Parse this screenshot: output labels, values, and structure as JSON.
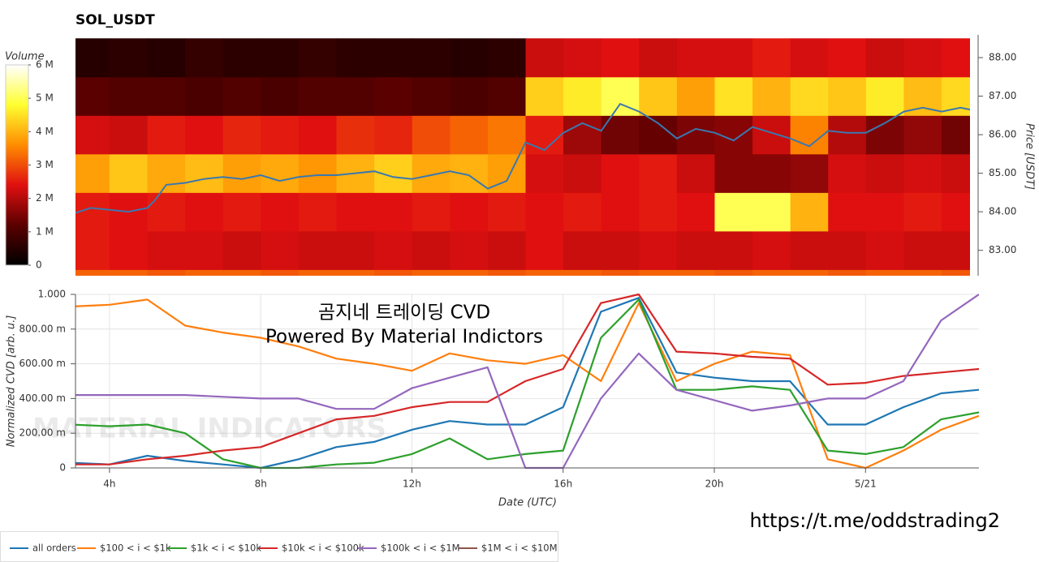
{
  "title": "SOL_USDT",
  "annotations": [
    "곰지네 트레이딩 CVD",
    "Powered By Material Indictors"
  ],
  "url": "https://t.me/oddstrading2",
  "watermark": "MATERIAL INDICATORS",
  "chart_data": [
    {
      "type": "heatmap",
      "y_label": "Price [USDT]",
      "xlim": [
        3.1,
        26.75
      ],
      "ylim": [
        82.34,
        88.59
      ],
      "yticks": [
        {
          "value": 83,
          "label": "83.00"
        },
        {
          "value": 84,
          "label": "84.00"
        },
        {
          "value": 85,
          "label": "85.00"
        },
        {
          "value": 86,
          "label": "86.00"
        },
        {
          "value": 87,
          "label": "87.00"
        },
        {
          "value": 88,
          "label": "88.00"
        }
      ],
      "xbins": [
        3,
        4,
        5,
        6,
        7,
        8,
        9,
        10,
        11,
        12,
        13,
        14,
        15,
        16,
        17,
        18,
        19,
        20,
        21,
        22,
        23,
        24,
        25,
        26,
        27
      ],
      "ybins": [
        81.5,
        82.5,
        83.5,
        84.5,
        85.5,
        86.5,
        87.5,
        88.5
      ],
      "z": [
        [
          3.2,
          3.2,
          3.1,
          3.2,
          3.2,
          3.1,
          3.2,
          3.2,
          3.1,
          3.2,
          3.2,
          3.1,
          3.2,
          3.2,
          3.1,
          3.2,
          3.2,
          3.1,
          3.2,
          3.2,
          3.1,
          3.2,
          3.2,
          3.1
        ],
        [
          2.5,
          2.4,
          2.3,
          2.3,
          2.2,
          2.3,
          2.2,
          2.2,
          2.3,
          2.2,
          2.3,
          2.2,
          2.4,
          2.2,
          2.2,
          2.3,
          2.2,
          2.2,
          2.3,
          2.2,
          2.2,
          2.3,
          2.2,
          2.2
        ],
        [
          2.5,
          2.4,
          2.5,
          2.4,
          2.5,
          2.4,
          2.5,
          2.4,
          2.4,
          2.5,
          2.4,
          2.5,
          2.4,
          2.5,
          2.4,
          2.5,
          2.4,
          5.0,
          5.0,
          4.0,
          2.4,
          2.4,
          2.5,
          2.4
        ],
        [
          3.8,
          4.2,
          3.9,
          4.1,
          3.8,
          3.9,
          3.7,
          4.0,
          4.3,
          3.9,
          4.0,
          3.8,
          2.3,
          2.2,
          2.4,
          2.5,
          2.2,
          1.6,
          1.6,
          1.7,
          2.3,
          2.2,
          2.3,
          2.2
        ],
        [
          2.3,
          2.2,
          2.5,
          2.4,
          2.6,
          2.5,
          2.4,
          2.7,
          2.6,
          3.0,
          3.2,
          3.4,
          2.5,
          1.8,
          1.4,
          1.3,
          1.5,
          1.6,
          2.2,
          3.5,
          2.0,
          1.5,
          1.7,
          1.4
        ],
        [
          1.2,
          1.1,
          1.1,
          1.0,
          1.1,
          1.0,
          1.1,
          1.1,
          1.2,
          1.1,
          1.0,
          1.1,
          4.3,
          4.6,
          5.0,
          4.2,
          3.8,
          4.5,
          4.0,
          4.4,
          4.2,
          4.6,
          4.1,
          4.4
        ],
        [
          0.5,
          0.6,
          0.5,
          0.7,
          0.6,
          0.6,
          0.7,
          0.6,
          0.6,
          0.6,
          0.5,
          0.6,
          2.2,
          2.3,
          2.4,
          2.2,
          2.3,
          2.3,
          2.5,
          2.3,
          2.4,
          2.2,
          2.3,
          2.4
        ]
      ],
      "colorscale": [
        [
          0,
          "#000000"
        ],
        [
          1.2,
          "#5a0000"
        ],
        [
          2.4,
          "#e01010"
        ],
        [
          3.6,
          "#ff8c00"
        ],
        [
          4.8,
          "#ffff30"
        ],
        [
          6,
          "#ffffff"
        ]
      ],
      "colorbar": {
        "label": "Volume",
        "range": [
          0,
          6
        ],
        "ticks": [
          {
            "value": 0,
            "label": "0"
          },
          {
            "value": 1,
            "label": "1 M"
          },
          {
            "value": 2,
            "label": "2 M"
          },
          {
            "value": 3,
            "label": "3 M"
          },
          {
            "value": 4,
            "label": "4 M"
          },
          {
            "value": 5,
            "label": "5 M"
          },
          {
            "value": 6,
            "label": "6 M"
          }
        ]
      },
      "line": {
        "color": "#3a78b0",
        "x": [
          3.1,
          3.5,
          4,
          4.5,
          5,
          5.2,
          5.5,
          6,
          6.5,
          7,
          7.5,
          8,
          8.5,
          9,
          9.5,
          10,
          10.5,
          11,
          11.5,
          12,
          12.5,
          13,
          13.5,
          14,
          14.5,
          15,
          15.5,
          16,
          16.5,
          17,
          17.5,
          18,
          18.5,
          19,
          19.5,
          20,
          20.5,
          21,
          21.5,
          22,
          22.5,
          23,
          23.5,
          24,
          24.5,
          25,
          25.5,
          26,
          26.5,
          26.75
        ],
        "y": [
          83.97,
          84.1,
          84.05,
          84.0,
          84.1,
          84.3,
          84.7,
          84.75,
          84.85,
          84.9,
          84.85,
          84.95,
          84.8,
          84.9,
          84.95,
          84.95,
          85.0,
          85.05,
          84.9,
          84.85,
          84.95,
          85.05,
          84.95,
          84.6,
          84.8,
          85.8,
          85.6,
          86.05,
          86.3,
          86.1,
          86.8,
          86.6,
          86.3,
          85.9,
          86.15,
          86.05,
          85.85,
          86.2,
          86.05,
          85.9,
          85.7,
          86.1,
          86.05,
          86.05,
          86.3,
          86.6,
          86.7,
          86.6,
          86.7,
          86.65
        ]
      }
    },
    {
      "type": "line",
      "x_label": "Date (UTC)",
      "y_label": "Normalized CVD [arb. u.]",
      "xlim": [
        3.1,
        27
      ],
      "ylim": [
        0,
        1
      ],
      "grid": true,
      "xticks": [
        {
          "value": 4,
          "label": "4h"
        },
        {
          "value": 8,
          "label": "8h"
        },
        {
          "value": 12,
          "label": "12h"
        },
        {
          "value": 16,
          "label": "16h"
        },
        {
          "value": 20,
          "label": "20h"
        },
        {
          "value": 24,
          "label": "5/21"
        }
      ],
      "yticks": [
        {
          "value": 0,
          "label": "0"
        },
        {
          "value": 0.2,
          "label": "200.00 m"
        },
        {
          "value": 0.4,
          "label": "400.00 m"
        },
        {
          "value": 0.6,
          "label": "600.00 m"
        },
        {
          "value": 0.8,
          "label": "800.00 m"
        },
        {
          "value": 1,
          "label": "1.000"
        }
      ],
      "x": [
        3,
        4,
        5,
        6,
        7,
        8,
        9,
        10,
        11,
        12,
        13,
        14,
        15,
        16,
        17,
        18,
        19,
        20,
        21,
        22,
        23,
        24,
        25,
        26,
        27
      ],
      "legend": "bottom-left",
      "series": [
        {
          "name": "all orders",
          "color": "#1f77b4",
          "values": [
            0.03,
            0.02,
            0.07,
            0.04,
            0.02,
            0.0,
            0.05,
            0.12,
            0.15,
            0.22,
            0.27,
            0.25,
            0.25,
            0.35,
            0.9,
            0.98,
            0.55,
            0.52,
            0.5,
            0.5,
            0.25,
            0.25,
            0.35,
            0.43,
            0.45
          ]
        },
        {
          "name": "$100 < i < $1k",
          "color": "#ff7f0e",
          "values": [
            0.93,
            0.94,
            0.97,
            0.82,
            0.78,
            0.75,
            0.7,
            0.63,
            0.6,
            0.56,
            0.66,
            0.62,
            0.6,
            0.65,
            0.5,
            0.95,
            0.5,
            0.6,
            0.67,
            0.65,
            0.05,
            0.0,
            0.1,
            0.22,
            0.3
          ]
        },
        {
          "name": "$1k < i < $10k",
          "color": "#2ca02c",
          "values": [
            0.25,
            0.24,
            0.25,
            0.2,
            0.05,
            0.0,
            0.0,
            0.02,
            0.03,
            0.08,
            0.17,
            0.05,
            0.08,
            0.1,
            0.75,
            0.97,
            0.45,
            0.45,
            0.47,
            0.45,
            0.1,
            0.08,
            0.12,
            0.28,
            0.32
          ]
        },
        {
          "name": "$10k < i < $100k",
          "color": "#d62728",
          "values": [
            0.02,
            0.02,
            0.05,
            0.07,
            0.1,
            0.12,
            0.2,
            0.28,
            0.3,
            0.35,
            0.38,
            0.38,
            0.5,
            0.57,
            0.95,
            1.0,
            0.67,
            0.66,
            0.64,
            0.63,
            0.48,
            0.49,
            0.53,
            0.55,
            0.57
          ]
        },
        {
          "name": "$100k < i < $1M",
          "color": "#9467bd",
          "values": [
            0.42,
            0.42,
            0.42,
            0.42,
            0.41,
            0.4,
            0.4,
            0.34,
            0.34,
            0.46,
            0.52,
            0.58,
            0.0,
            0.0,
            0.4,
            0.66,
            0.45,
            0.39,
            0.33,
            0.36,
            0.4,
            0.4,
            0.5,
            0.85,
            1.0
          ]
        },
        {
          "name": "$1M < i < $10M",
          "color": "#8c564b",
          "values": [
            null,
            null,
            null,
            null,
            null,
            null,
            null,
            null,
            null,
            null,
            null,
            null,
            null,
            null,
            null,
            null,
            null,
            null,
            null,
            null,
            null,
            null,
            null,
            null,
            null
          ]
        }
      ]
    }
  ]
}
